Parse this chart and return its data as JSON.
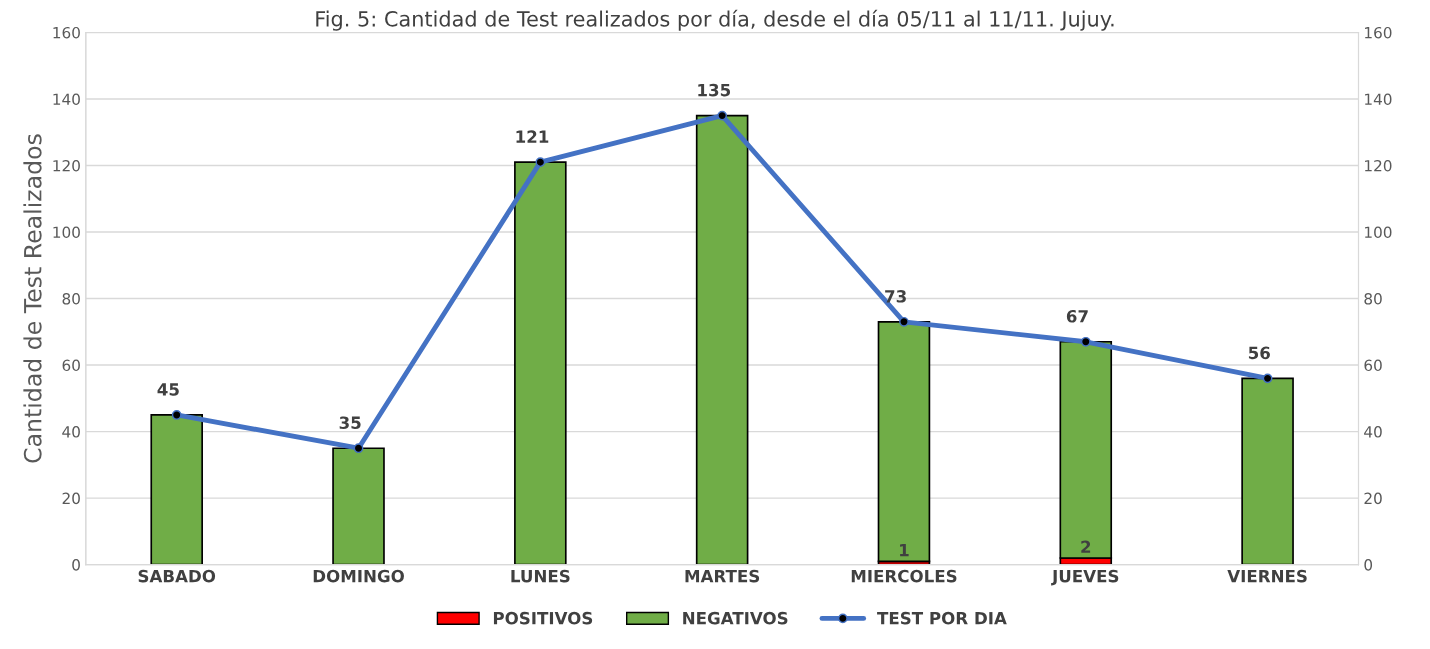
{
  "chart_data": {
    "type": "bar",
    "title": "Fig. 5: Cantidad de Test realizados por día, desde el día 05/11 al 11/11. Jujuy.",
    "ylabel": "Cantidad de Test Realizados",
    "categories": [
      "SABADO",
      "DOMINGO",
      "LUNES",
      "MARTES",
      "MIERCOLES",
      "JUEVES",
      "VIERNES"
    ],
    "stacked": true,
    "series": [
      {
        "name": "POSITIVOS",
        "color": "#ff0000",
        "values": [
          0,
          0,
          0,
          0,
          1,
          2,
          0
        ],
        "value_labels": [
          null,
          null,
          null,
          null,
          "1",
          "2",
          null
        ]
      },
      {
        "name": "NEGATIVOS",
        "color": "#70ad47",
        "values": [
          45,
          35,
          121,
          135,
          72,
          65,
          56
        ]
      },
      {
        "name": "TEST POR DIA",
        "type": "line",
        "color": "#4472c4",
        "marker": "circle",
        "data_labels": true,
        "values": [
          45,
          35,
          121,
          135,
          73,
          67,
          56
        ]
      }
    ],
    "ylim": [
      0,
      160
    ],
    "yticks": [
      0,
      20,
      40,
      60,
      80,
      100,
      120,
      140,
      160
    ],
    "y2lim": [
      0,
      160
    ],
    "y2ticks": [
      0,
      20,
      40,
      60,
      80,
      100,
      120,
      140,
      160
    ],
    "grid": "y",
    "legend": "bottom"
  }
}
